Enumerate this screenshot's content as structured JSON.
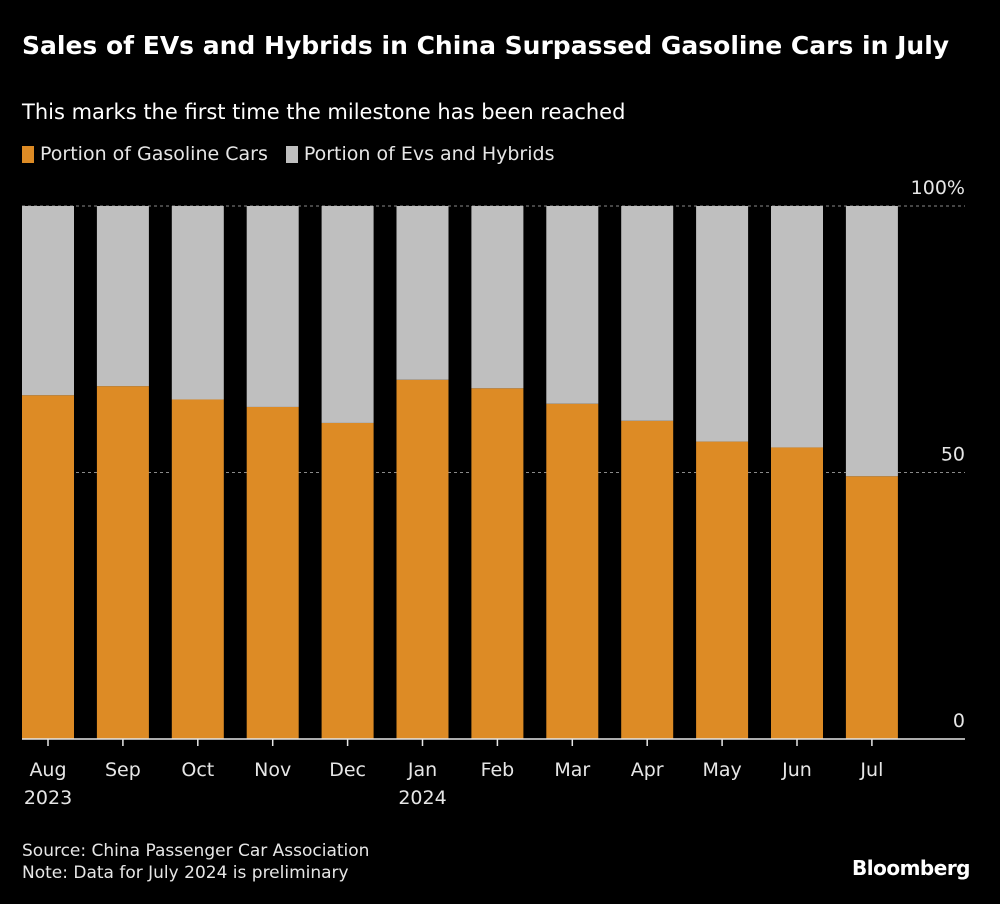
{
  "header": {
    "title": "Sales of EVs and Hybrids in China Surpassed Gasoline Cars in July",
    "subtitle": "This marks the first time the milestone has been reached"
  },
  "legend": [
    {
      "label": "Portion of Gasoline Cars",
      "color": "#dd8b25"
    },
    {
      "label": "Portion of Evs and Hybrids",
      "color": "#bfbfbf"
    }
  ],
  "footer": {
    "source": "Source: China Passenger Car Association",
    "note": "Note: Data for July 2024 is preliminary",
    "brand": "Bloomberg"
  },
  "chart_data": {
    "type": "bar",
    "stacked": true,
    "title": "Sales of EVs and Hybrids in China Surpassed Gasoline Cars in July",
    "subtitle": "This marks the first time the milestone has been reached",
    "xlabel": "",
    "ylabel": "",
    "ylim": [
      0,
      100
    ],
    "yticks": [
      {
        "value": 0,
        "label": "0"
      },
      {
        "value": 50,
        "label": "50"
      },
      {
        "value": 100,
        "label": "100%"
      }
    ],
    "grid": true,
    "legend_position": "top-left",
    "categories": [
      {
        "label": "Aug",
        "sublabel": "2023"
      },
      {
        "label": "Sep",
        "sublabel": ""
      },
      {
        "label": "Oct",
        "sublabel": ""
      },
      {
        "label": "Nov",
        "sublabel": ""
      },
      {
        "label": "Dec",
        "sublabel": ""
      },
      {
        "label": "Jan",
        "sublabel": "2024"
      },
      {
        "label": "Feb",
        "sublabel": ""
      },
      {
        "label": "Mar",
        "sublabel": ""
      },
      {
        "label": "Apr",
        "sublabel": ""
      },
      {
        "label": "May",
        "sublabel": ""
      },
      {
        "label": "Jun",
        "sublabel": ""
      },
      {
        "label": "Jul",
        "sublabel": ""
      }
    ],
    "series": [
      {
        "name": "Portion of Gasoline Cars",
        "color": "#dd8b25",
        "values": [
          64.5,
          66.2,
          63.7,
          62.3,
          59.3,
          67.4,
          65.8,
          62.9,
          59.7,
          55.8,
          54.7,
          49.3
        ]
      },
      {
        "name": "Portion of Evs and Hybrids",
        "color": "#bfbfbf",
        "values": [
          35.5,
          33.8,
          36.3,
          37.7,
          40.7,
          32.6,
          34.2,
          37.1,
          40.3,
          44.2,
          45.3,
          50.7
        ]
      }
    ]
  }
}
